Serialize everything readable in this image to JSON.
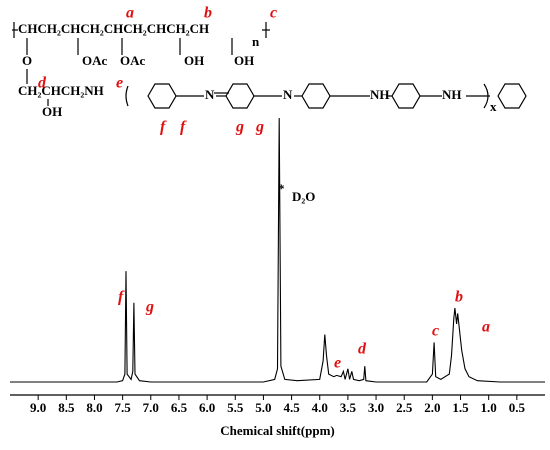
{
  "chart_data": {
    "type": "line",
    "x_label": "Chemical shift(ppm)",
    "x": [
      9.5,
      7.6,
      7.5,
      7.46,
      7.44,
      7.42,
      7.35,
      7.32,
      7.3,
      7.28,
      7.2,
      7.0,
      5.0,
      4.8,
      4.75,
      4.72,
      4.69,
      4.62,
      4.4,
      4.0,
      3.94,
      3.91,
      3.88,
      3.84,
      3.75,
      3.7,
      3.62,
      3.58,
      3.55,
      3.5,
      3.47,
      3.43,
      3.4,
      3.3,
      3.22,
      3.2,
      3.18,
      3.0,
      2.1,
      2.0,
      1.97,
      1.94,
      1.85,
      1.7,
      1.66,
      1.62,
      1.6,
      1.57,
      1.55,
      1.52,
      1.48,
      1.42,
      1.35,
      1.2,
      0.8,
      0
    ],
    "values": [
      0,
      0,
      0.5,
      3,
      42,
      3,
      1,
      4,
      30,
      3,
      0.5,
      0,
      0,
      1,
      5,
      100,
      6,
      1,
      0.5,
      1,
      8,
      18,
      10,
      3,
      2,
      2.5,
      2,
      4,
      1,
      5,
      1,
      4,
      1,
      0.5,
      1,
      6,
      0.5,
      0,
      0,
      3,
      15,
      2,
      1,
      3,
      10,
      24,
      28,
      22,
      26,
      20,
      12,
      5,
      2,
      0.5,
      0,
      0
    ],
    "color": "#000000",
    "xlim": [
      9.5,
      0
    ],
    "ylim": [
      0,
      100
    ],
    "xticks": [
      {
        "value": 9,
        "label": "9.0"
      },
      8.5,
      {
        "value": 8,
        "label": "8.0"
      },
      7.5,
      {
        "value": 7,
        "label": "7.0"
      },
      6.5,
      {
        "value": 6,
        "label": "6.0"
      },
      5.5,
      {
        "value": 5,
        "label": "5.0"
      },
      4.5,
      {
        "value": 4,
        "label": "4.0"
      },
      3.5,
      {
        "value": 3,
        "label": "3.0"
      },
      2.5,
      {
        "value": 2,
        "label": "2.0"
      },
      1.5,
      {
        "value": 1,
        "label": "1.0"
      },
      0.5
    ],
    "annotations": [
      "f",
      "g",
      "*",
      "D₂O",
      "e",
      "d",
      "c",
      "b",
      "a"
    ]
  },
  "structure": {
    "texts": [
      "CHCH₂CHCH₂CHCH₂CHCH₂CH",
      "n",
      "O",
      "OAc",
      "OAc",
      "OH",
      "OH",
      "CH₂CHCH₂NH",
      "OH",
      "N",
      "N",
      "NH",
      "NH",
      "x"
    ],
    "labels": [
      "a",
      "b",
      "c",
      "d",
      "e",
      "f",
      "f",
      "g",
      "g"
    ]
  }
}
